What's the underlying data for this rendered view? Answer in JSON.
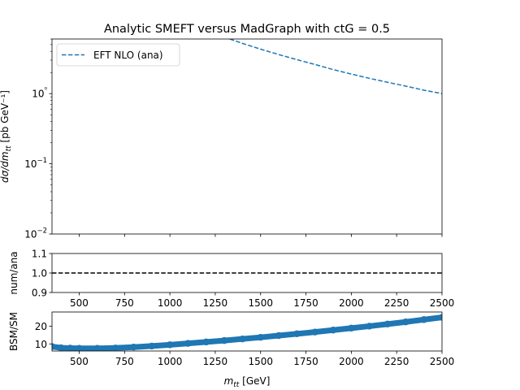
{
  "title": "Analytic SMEFT versus MadGraph with ctG = 0.5",
  "chart_data": [
    {
      "type": "line",
      "panel": "main",
      "ylabel": "dσ/dm_tt [pb GeV⁻¹]",
      "yscale": "log",
      "xlim": [
        350,
        2500
      ],
      "ylim": [
        0.01,
        6
      ],
      "yticks": [
        0.01,
        0.1,
        1
      ],
      "yticklabels": [
        "10−2",
        "10−1",
        "10⁰"
      ],
      "legend": {
        "location": "upper-left",
        "entries": [
          "EFT NLO (ana)"
        ]
      },
      "series": [
        {
          "name": "EFT NLO (ana)",
          "style": "dashed",
          "color": "#1f77b4",
          "x": [
            1330,
            1400,
            1500,
            1600,
            1700,
            1800,
            1900,
            2000,
            2100,
            2200,
            2300,
            2400,
            2500
          ],
          "y": [
            6.0,
            5.2,
            4.3,
            3.6,
            3.05,
            2.6,
            2.2,
            1.9,
            1.65,
            1.45,
            1.28,
            1.12,
            1.0
          ]
        }
      ]
    },
    {
      "type": "line",
      "panel": "ratio",
      "ylabel": "num/ana",
      "xlim": [
        350,
        2500
      ],
      "ylim": [
        0.9,
        1.1
      ],
      "yticks": [
        0.9,
        1.0,
        1.1
      ],
      "yticklabels": [
        "0.9",
        "1.0",
        "1.1"
      ],
      "xticks": [
        500,
        750,
        1000,
        1250,
        1500,
        1750,
        2000,
        2250,
        2500
      ],
      "xticklabels": [
        "500",
        "750",
        "1000",
        "1250",
        "1500",
        "1750",
        "2000",
        "2250",
        "2500"
      ],
      "series": [
        {
          "style": "dashed",
          "color": "#000000",
          "x": [
            350,
            2500
          ],
          "y": [
            1.0,
            1.0
          ]
        }
      ]
    },
    {
      "type": "scatter",
      "panel": "bsm",
      "ylabel": "BSM/SM",
      "xlabel": "m_tt [GeV]",
      "xlim": [
        350,
        2500
      ],
      "ylim": [
        6,
        28
      ],
      "yticks": [
        10,
        20
      ],
      "yticklabels": [
        "10",
        "20"
      ],
      "xticks": [
        500,
        750,
        1000,
        1250,
        1500,
        1750,
        2000,
        2250,
        2500
      ],
      "xticklabels": [
        "500",
        "750",
        "1000",
        "1250",
        "1500",
        "1750",
        "2000",
        "2250",
        "2500"
      ],
      "series": [
        {
          "color": "#1f77b4",
          "x": [
            350,
            400,
            450,
            500,
            600,
            700,
            800,
            900,
            1000,
            1100,
            1200,
            1300,
            1400,
            1500,
            1600,
            1700,
            1800,
            1900,
            2000,
            2100,
            2200,
            2300,
            2400,
            2500
          ],
          "y": [
            8.5,
            7.8,
            7.6,
            7.5,
            7.5,
            7.7,
            8.2,
            8.8,
            9.5,
            10.3,
            11.1,
            11.9,
            12.8,
            13.7,
            14.7,
            15.7,
            16.7,
            17.8,
            18.9,
            20.0,
            21.2,
            22.4,
            23.7,
            25.0
          ]
        }
      ]
    }
  ]
}
